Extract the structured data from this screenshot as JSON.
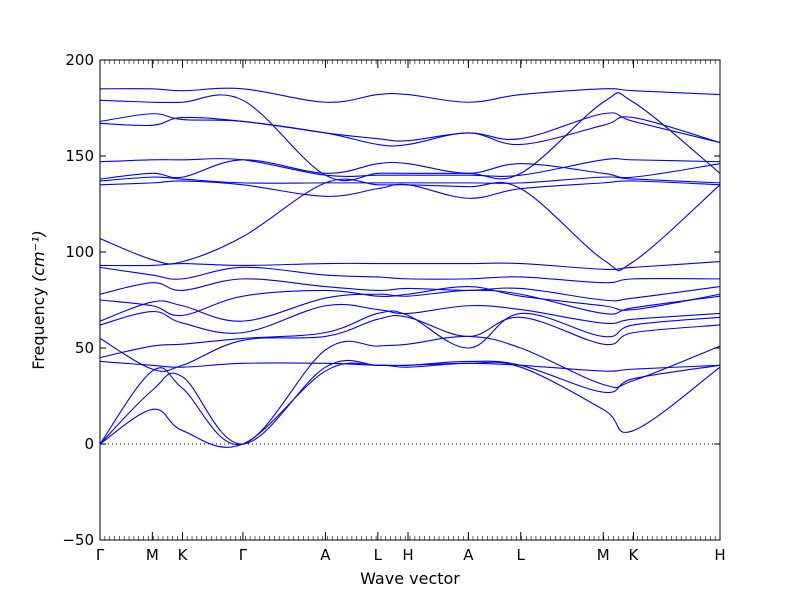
{
  "chart_data": {
    "type": "line",
    "xlabel": "Wave vector",
    "ylabel": "Frequency",
    "ylabel_unit": "(cm⁻¹)",
    "ylim": [
      -50,
      200
    ],
    "yticks": [
      -50,
      0,
      50,
      100,
      150,
      200
    ],
    "xticks": [
      {
        "label": "Γ",
        "x": 0
      },
      {
        "label": "M",
        "x": 0.0844
      },
      {
        "label": "K",
        "x": 0.1331
      },
      {
        "label": "Γ",
        "x": 0.2305
      },
      {
        "label": "A",
        "x": 0.3636
      },
      {
        "label": "L",
        "x": 0.4481
      },
      {
        "label": "H",
        "x": 0.4968
      },
      {
        "label": "A",
        "x": 0.5942
      },
      {
        "label": "L",
        "x": 0.6786
      },
      {
        "label": "M",
        "x": 0.8117
      },
      {
        "label": "K",
        "x": 0.8604
      },
      {
        "label": "H",
        "x": 1.0
      }
    ],
    "zero_line": {
      "y": 0,
      "style": "dotted"
    },
    "line_color": "#0000ff",
    "series": [
      {
        "x": [
          0,
          0.0844,
          0.1331,
          0.2305,
          0.3636,
          0.4481,
          0.4968,
          0.5942,
          0.6786,
          0.8117,
          0.8604,
          1.0
        ],
        "y": [
          0,
          18,
          7,
          0,
          38,
          41,
          40,
          42,
          40,
          18,
          7,
          40
        ]
      },
      {
        "x": [
          0,
          0.0844,
          0.1331,
          0.2305,
          0.3636,
          0.4481,
          0.4968,
          0.5942,
          0.6786,
          0.8117,
          0.8604,
          1.0
        ],
        "y": [
          0,
          28,
          35,
          0,
          40,
          41,
          41,
          43,
          41,
          27,
          34,
          41
        ]
      },
      {
        "x": [
          0,
          0.0844,
          0.1331,
          0.2305,
          0.3636,
          0.4481,
          0.4968,
          0.5942,
          0.6786,
          0.8117,
          0.8604,
          1.0
        ],
        "y": [
          0,
          38,
          29,
          0,
          49,
          51,
          52,
          56,
          50,
          31,
          33,
          51
        ]
      },
      {
        "x": [
          0,
          0.0844,
          0.1331,
          0.2305,
          0.3636,
          0.4481,
          0.4968,
          0.5942,
          0.6786,
          0.8117,
          0.8604,
          1.0
        ],
        "y": [
          43,
          41,
          40,
          42,
          42,
          41,
          41,
          42,
          41,
          38,
          39,
          41
        ]
      },
      {
        "x": [
          0,
          0.0844,
          0.1331,
          0.2305,
          0.3636,
          0.4481,
          0.4968,
          0.5942,
          0.6786,
          0.8117,
          0.8604,
          1.0
        ],
        "y": [
          55,
          39,
          41,
          54,
          56,
          65,
          66,
          56,
          66,
          52,
          58,
          62
        ]
      },
      {
        "x": [
          0,
          0.0844,
          0.1331,
          0.2305,
          0.3636,
          0.4481,
          0.4968,
          0.5942,
          0.6786,
          0.8117,
          0.8604,
          1.0
        ],
        "y": [
          45,
          51,
          52,
          55,
          58,
          68,
          67,
          50,
          68,
          56,
          62,
          66
        ]
      },
      {
        "x": [
          0,
          0.0844,
          0.1331,
          0.2305,
          0.3636,
          0.4481,
          0.4968,
          0.5942,
          0.6786,
          0.8117,
          0.8604,
          1.0
        ],
        "y": [
          62,
          69,
          63,
          58,
          72,
          70,
          68,
          72,
          70,
          63,
          65,
          68
        ]
      },
      {
        "x": [
          0,
          0.0844,
          0.1331,
          0.2305,
          0.3636,
          0.4481,
          0.4968,
          0.5942,
          0.6786,
          0.8117,
          0.8604,
          1.0
        ],
        "y": [
          64,
          74,
          72,
          64,
          76,
          78,
          77,
          80,
          78,
          68,
          71,
          77
        ]
      },
      {
        "x": [
          0,
          0.0844,
          0.1331,
          0.2305,
          0.3636,
          0.4481,
          0.4968,
          0.5942,
          0.6786,
          0.8117,
          0.8604,
          1.0
        ],
        "y": [
          75,
          72,
          67,
          77,
          80,
          77,
          78,
          82,
          77,
          72,
          70,
          78
        ]
      },
      {
        "x": [
          0,
          0.0844,
          0.1331,
          0.2305,
          0.3636,
          0.4481,
          0.4968,
          0.5942,
          0.6786,
          0.8117,
          0.8604,
          1.0
        ],
        "y": [
          78,
          84,
          80,
          86,
          82,
          80,
          81,
          80,
          81,
          75,
          76,
          82
        ]
      },
      {
        "x": [
          0,
          0.0844,
          0.1331,
          0.2305,
          0.3636,
          0.4481,
          0.4968,
          0.5942,
          0.6786,
          0.8117,
          0.8604,
          1.0
        ],
        "y": [
          92,
          88,
          86,
          92,
          88,
          87,
          86,
          86,
          87,
          84,
          86,
          86
        ]
      },
      {
        "x": [
          0,
          0.0844,
          0.1331,
          0.2305,
          0.3636,
          0.4481,
          0.4968,
          0.5942,
          0.6786,
          0.8117,
          0.8604,
          1.0
        ],
        "y": [
          93,
          93,
          94,
          93,
          94,
          94,
          94,
          94,
          94,
          91,
          92,
          95
        ]
      },
      {
        "x": [
          0,
          0.0844,
          0.1331,
          0.2305,
          0.3636,
          0.4481,
          0.4968,
          0.5942,
          0.6786,
          0.8117,
          0.8604,
          1.0
        ],
        "y": [
          107,
          96,
          95,
          108,
          136,
          135,
          135,
          134,
          133,
          96,
          95,
          135
        ]
      },
      {
        "x": [
          0,
          0.0844,
          0.1331,
          0.2305,
          0.3636,
          0.4481,
          0.4968,
          0.5942,
          0.6786,
          0.8117,
          0.8604,
          1.0
        ],
        "y": [
          135,
          136,
          137,
          135,
          129,
          133,
          135,
          128,
          133,
          136,
          137,
          135
        ]
      },
      {
        "x": [
          0,
          0.0844,
          0.1331,
          0.2305,
          0.3636,
          0.4481,
          0.4968,
          0.5942,
          0.6786,
          0.8117,
          0.8604,
          1.0
        ],
        "y": [
          137,
          139,
          138,
          136,
          136,
          136,
          136,
          136,
          136,
          139,
          138,
          136
        ]
      },
      {
        "x": [
          0,
          0.0844,
          0.1331,
          0.2305,
          0.3636,
          0.4481,
          0.4968,
          0.5942,
          0.6786,
          0.8117,
          0.8604,
          1.0
        ],
        "y": [
          138,
          141,
          139,
          148,
          141,
          146,
          146,
          141,
          146,
          141,
          139,
          146
        ]
      },
      {
        "x": [
          0,
          0.0844,
          0.1331,
          0.2305,
          0.3636,
          0.4481,
          0.4968,
          0.5942,
          0.6786,
          0.8117,
          0.8604,
          1.0
        ],
        "y": [
          147,
          148,
          148,
          148,
          140,
          140,
          140,
          140,
          140,
          148,
          148,
          147
        ]
      },
      {
        "x": [
          0,
          0.0844,
          0.1331,
          0.2305,
          0.3636,
          0.4481,
          0.4968,
          0.5942,
          0.6786,
          0.8117,
          0.8604,
          1.0
        ],
        "y": [
          168,
          172,
          169,
          168,
          162,
          159,
          158,
          162,
          159,
          172,
          168,
          157
        ]
      },
      {
        "x": [
          0,
          0.0844,
          0.1331,
          0.2305,
          0.3636,
          0.4481,
          0.4968,
          0.5942,
          0.6786,
          0.8117,
          0.8604,
          1.0
        ],
        "y": [
          167,
          166,
          170,
          168,
          162,
          156,
          156,
          162,
          156,
          166,
          170,
          157
        ]
      },
      {
        "x": [
          0,
          0.0844,
          0.1331,
          0.2305,
          0.3636,
          0.4481,
          0.4968,
          0.5942,
          0.6786,
          0.8117,
          0.8604,
          1.0
        ],
        "y": [
          179,
          178,
          178,
          179,
          140,
          141,
          141,
          141,
          141,
          178,
          178,
          141
        ]
      },
      {
        "x": [
          0,
          0.0844,
          0.1331,
          0.2305,
          0.3636,
          0.4481,
          0.4968,
          0.5942,
          0.6786,
          0.8117,
          0.8604,
          1.0
        ],
        "y": [
          185,
          185,
          184,
          185,
          178,
          182,
          182,
          178,
          182,
          185,
          184,
          182
        ]
      }
    ]
  }
}
